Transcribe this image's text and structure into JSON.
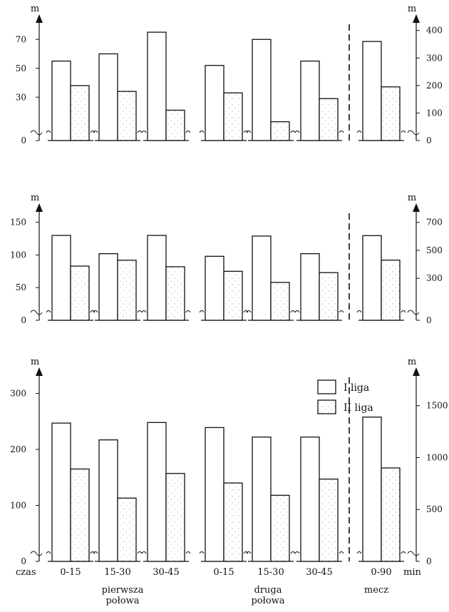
{
  "chart_data": [
    {
      "type": "bar",
      "left_unit": "m",
      "right_unit": "m",
      "left_ticks": [
        0,
        30,
        50,
        70
      ],
      "right_ticks": [
        0,
        100,
        200,
        300,
        400
      ],
      "left_ylim": [
        0,
        80
      ],
      "right_ylim": [
        0,
        420
      ],
      "groups": [
        {
          "label": "0-15",
          "axis": "left",
          "values": [
            55,
            38
          ]
        },
        {
          "label": "15-30",
          "axis": "left",
          "values": [
            60,
            34
          ]
        },
        {
          "label": "30-45",
          "axis": "left",
          "values": [
            75,
            21
          ]
        },
        {
          "label": "0-15",
          "axis": "left",
          "values": [
            52,
            33
          ]
        },
        {
          "label": "15-30",
          "axis": "left",
          "values": [
            70,
            13
          ]
        },
        {
          "label": "30-45",
          "axis": "left",
          "values": [
            55,
            29
          ]
        },
        {
          "label": "0-90",
          "axis": "right",
          "values": [
            360,
            195
          ]
        }
      ]
    },
    {
      "type": "bar",
      "left_unit": "m",
      "right_unit": "m",
      "left_ticks": [
        0,
        50,
        100,
        150
      ],
      "right_ticks": [
        0,
        300,
        500,
        700
      ],
      "left_ylim": [
        0,
        165
      ],
      "right_ylim": [
        0,
        770
      ],
      "groups": [
        {
          "label": "0-15",
          "axis": "left",
          "values": [
            130,
            83
          ]
        },
        {
          "label": "15-30",
          "axis": "left",
          "values": [
            102,
            92
          ]
        },
        {
          "label": "30-45",
          "axis": "left",
          "values": [
            130,
            82
          ]
        },
        {
          "label": "0-15",
          "axis": "left",
          "values": [
            98,
            75
          ]
        },
        {
          "label": "15-30",
          "axis": "left",
          "values": [
            129,
            58
          ]
        },
        {
          "label": "30-45",
          "axis": "left",
          "values": [
            102,
            73
          ]
        },
        {
          "label": "0-90",
          "axis": "right",
          "values": [
            605,
            430
          ]
        }
      ]
    },
    {
      "type": "bar",
      "left_unit": "m",
      "right_unit": "m",
      "left_ticks": [
        0,
        100,
        200,
        300
      ],
      "right_ticks": [
        0,
        500,
        1000,
        1500
      ],
      "left_ylim": [
        0,
        330
      ],
      "right_ylim": [
        0,
        1780
      ],
      "groups": [
        {
          "label": "0-15",
          "axis": "left",
          "values": [
            247,
            165
          ]
        },
        {
          "label": "15-30",
          "axis": "left",
          "values": [
            217,
            113
          ]
        },
        {
          "label": "30-45",
          "axis": "left",
          "values": [
            248,
            157
          ]
        },
        {
          "label": "0-15",
          "axis": "left",
          "values": [
            239,
            140
          ]
        },
        {
          "label": "15-30",
          "axis": "left",
          "values": [
            222,
            118
          ]
        },
        {
          "label": "30-45",
          "axis": "left",
          "values": [
            222,
            147
          ]
        },
        {
          "label": "0-90",
          "axis": "right",
          "values": [
            1390,
            900
          ]
        }
      ]
    }
  ],
  "legend": {
    "items": [
      {
        "label": "I liga",
        "fill": "#ffffff"
      },
      {
        "label": "II liga",
        "fill": "dotted"
      }
    ]
  },
  "x_axis": {
    "start_label": "czas",
    "end_label": "min",
    "categories": [
      "0-15",
      "15-30",
      "30-45",
      "0-15",
      "15-30",
      "30-45",
      "0-90"
    ],
    "group_labels": [
      {
        "line1": "pierwsza",
        "line2": "połowa"
      },
      {
        "line1": "druga",
        "line2": "połowa"
      },
      {
        "line1": "mecz",
        "line2": ""
      }
    ]
  }
}
